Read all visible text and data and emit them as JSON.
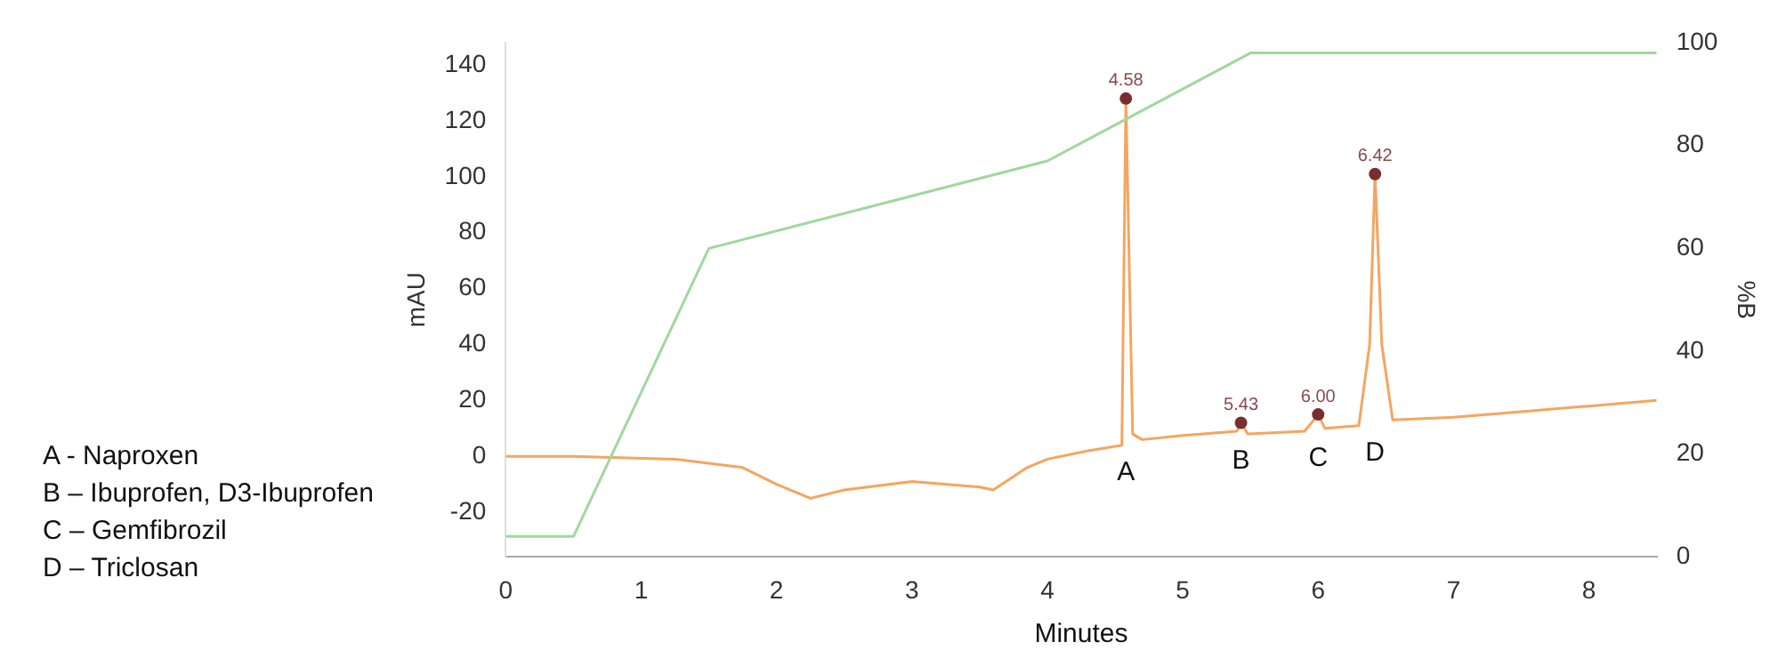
{
  "chart_data": {
    "type": "line",
    "xlabel": "Minutes",
    "ylabel": "mAU",
    "y2label": "%B",
    "xlim": [
      0,
      8.5
    ],
    "xticks": [
      0,
      1,
      2,
      3,
      4,
      5,
      6,
      7,
      8
    ],
    "ylim": [
      -36,
      148
    ],
    "yticks": [
      -20,
      0,
      20,
      40,
      60,
      80,
      100,
      120,
      140
    ],
    "y2lim": [
      0,
      100
    ],
    "y2ticks": [
      0,
      20,
      40,
      60,
      80,
      100
    ],
    "grid": false,
    "legend": false,
    "series": [
      {
        "color": "#9fd89f",
        "axis": "y2",
        "marker": "none",
        "x": [
          0,
          0.5,
          1.5,
          4,
          5.5,
          8.5
        ],
        "values": [
          4,
          4,
          60,
          77,
          98,
          98
        ]
      },
      {
        "color": "#f5a560",
        "marker": "none",
        "x": [
          0,
          0.5,
          1.25,
          1.75,
          2.0,
          2.25,
          2.5,
          3.0,
          3.5,
          3.6,
          3.85,
          4.0,
          4.3,
          4.55,
          4.58,
          4.63,
          4.7,
          5.0,
          5.4,
          5.43,
          5.48,
          5.9,
          6.0,
          6.05,
          6.3,
          6.38,
          6.42,
          6.47,
          6.55,
          7.0,
          7.5,
          8.0,
          8.5
        ],
        "values": [
          0,
          0,
          -1,
          -4,
          -10,
          -15,
          -12,
          -9,
          -11,
          -12,
          -4,
          -1,
          2,
          4,
          128,
          8,
          6,
          7.5,
          9,
          12,
          8,
          9,
          15,
          10,
          11,
          40,
          101,
          40,
          13,
          14,
          16,
          18,
          20
        ]
      },
      {
        "type": "scatter",
        "color": "#7a2e2e",
        "marker": "circle",
        "x": [
          4.58,
          5.43,
          6.0,
          6.42
        ],
        "values": [
          128,
          12,
          15,
          101
        ]
      }
    ],
    "annotations": [
      {
        "text": "4.58",
        "x": 4.58,
        "y": 128
      },
      {
        "text": "5.43",
        "x": 5.43,
        "y": 12
      },
      {
        "text": "6.00",
        "x": 6.0,
        "y": 15
      },
      {
        "text": "6.42",
        "x": 6.42,
        "y": 101
      },
      "A",
      "B",
      "C",
      "D",
      "A  - Naproxen",
      "B – Ibuprofen, D3-Ibuprofen",
      "C – Gemfibrozil",
      "D – Triclosan"
    ]
  }
}
